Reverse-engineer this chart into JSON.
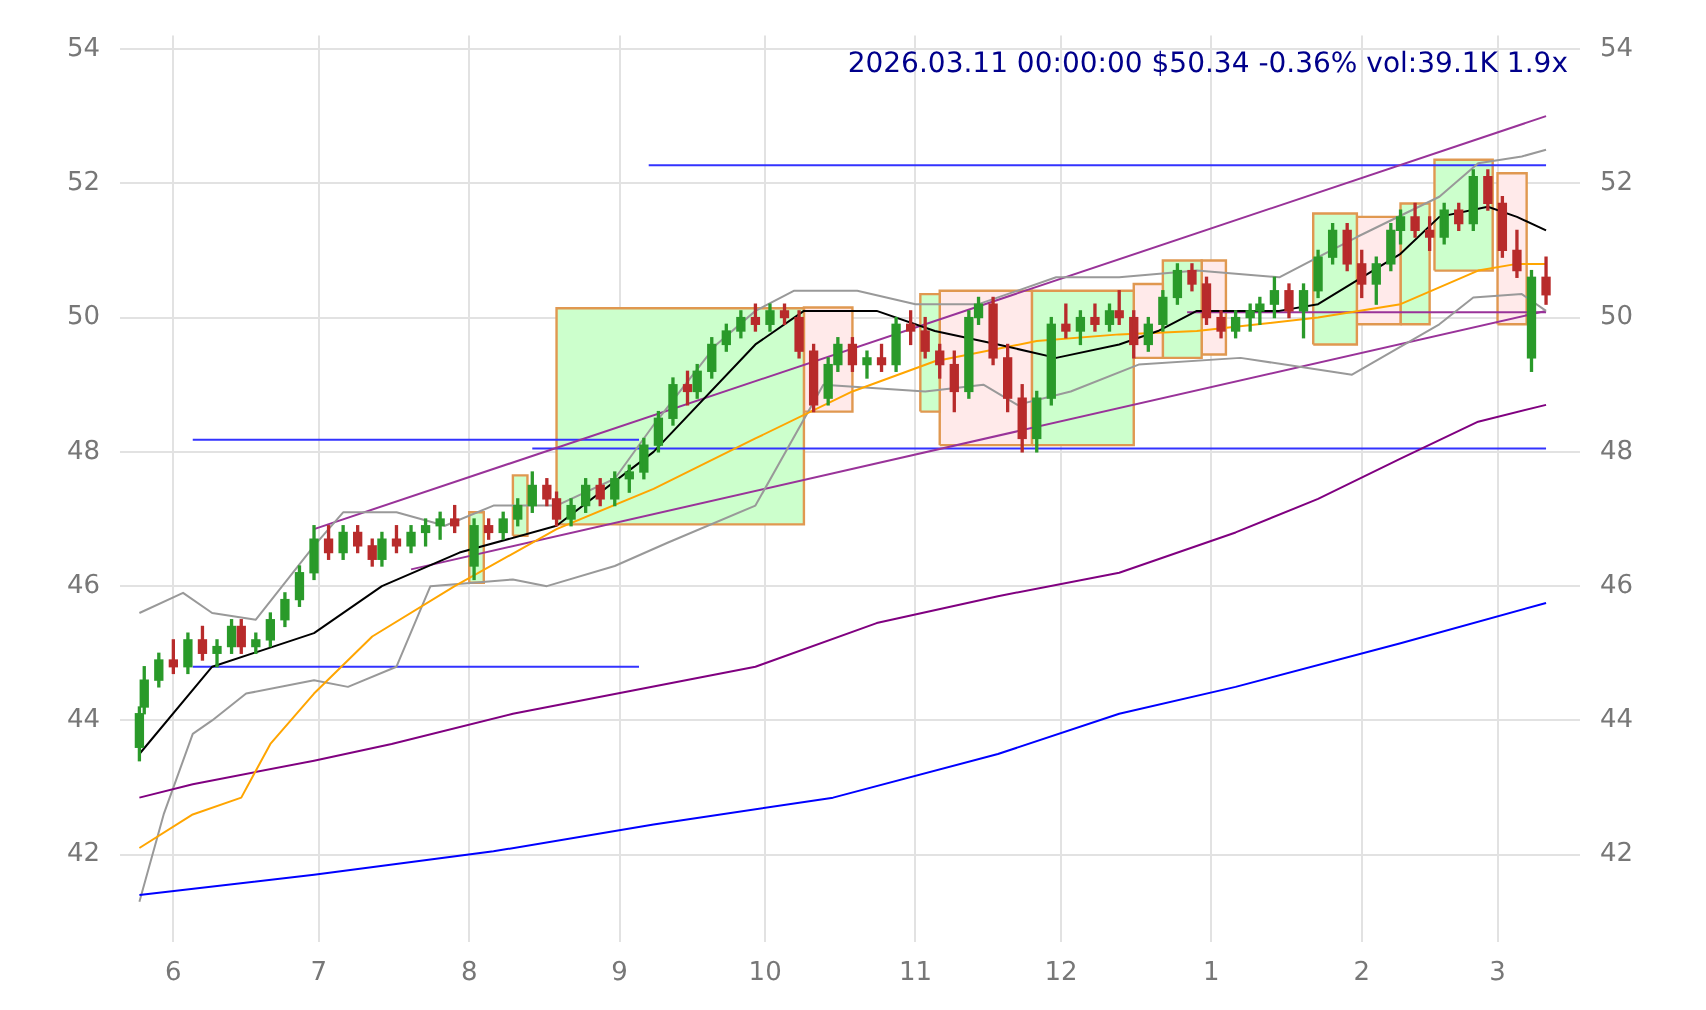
{
  "chart_data": {
    "type": "candlestick",
    "title": "2026.03.11 00:00:00 $50.34 -0.36% vol:39.1K 1.9x",
    "x": [
      "2025-05-25",
      "2025-05-26",
      "2025-05-29",
      "2025-06-01",
      "2025-06-04",
      "2025-06-07",
      "2025-06-10",
      "2025-06-13",
      "2025-06-15",
      "2025-06-18",
      "2025-06-21",
      "2025-06-24",
      "2025-06-27",
      "2025-06-30",
      "2025-07-03",
      "2025-07-06",
      "2025-07-09",
      "2025-07-12",
      "2025-07-14",
      "2025-07-17",
      "2025-07-20",
      "2025-07-23",
      "2025-07-26",
      "2025-07-29",
      "2025-08-02",
      "2025-08-05",
      "2025-08-08",
      "2025-08-11",
      "2025-08-14",
      "2025-08-17",
      "2025-08-19",
      "2025-08-22",
      "2025-08-25",
      "2025-08-28",
      "2025-08-31",
      "2025-09-03",
      "2025-09-06",
      "2025-09-09",
      "2025-09-12",
      "2025-09-15",
      "2025-09-17",
      "2025-09-20",
      "2025-09-23",
      "2025-09-26",
      "2025-09-29",
      "2025-10-02",
      "2025-10-05",
      "2025-10-08",
      "2025-10-11",
      "2025-10-14",
      "2025-10-16",
      "2025-10-19",
      "2025-10-22",
      "2025-10-25",
      "2025-10-28",
      "2025-10-31",
      "2025-11-03",
      "2025-11-06",
      "2025-11-09",
      "2025-11-12",
      "2025-11-14",
      "2025-11-17",
      "2025-11-20",
      "2025-11-23",
      "2025-11-26",
      "2025-11-29",
      "2025-12-02",
      "2025-12-05",
      "2025-12-08",
      "2025-12-11",
      "2025-12-13",
      "2025-12-16",
      "2025-12-19",
      "2025-12-22",
      "2025-12-25",
      "2025-12-28",
      "2025-12-31",
      "2026-01-03",
      "2026-01-06",
      "2026-01-09",
      "2026-01-11",
      "2026-01-14",
      "2026-01-17",
      "2026-01-20",
      "2026-01-23",
      "2026-01-26",
      "2026-01-29",
      "2026-02-01",
      "2026-02-04",
      "2026-02-07",
      "2026-02-09",
      "2026-02-12",
      "2026-02-15",
      "2026-02-18",
      "2026-02-21",
      "2026-02-24",
      "2026-02-27",
      "2026-03-02",
      "2026-03-05",
      "2026-03-08",
      "2026-03-11"
    ],
    "ohlc": [
      [
        43.6,
        44.2,
        43.4,
        44.1
      ],
      [
        44.2,
        44.8,
        44.1,
        44.6
      ],
      [
        44.6,
        45.0,
        44.5,
        44.9
      ],
      [
        44.9,
        45.2,
        44.7,
        44.8
      ],
      [
        44.8,
        45.3,
        44.7,
        45.2
      ],
      [
        45.2,
        45.4,
        44.9,
        45.0
      ],
      [
        45.0,
        45.2,
        44.8,
        45.1
      ],
      [
        45.1,
        45.5,
        45.0,
        45.4
      ],
      [
        45.4,
        45.5,
        45.0,
        45.1
      ],
      [
        45.1,
        45.3,
        45.0,
        45.2
      ],
      [
        45.2,
        45.6,
        45.1,
        45.5
      ],
      [
        45.5,
        45.9,
        45.4,
        45.8
      ],
      [
        45.8,
        46.3,
        45.7,
        46.2
      ],
      [
        46.2,
        46.9,
        46.1,
        46.7
      ],
      [
        46.7,
        46.9,
        46.4,
        46.5
      ],
      [
        46.5,
        46.9,
        46.4,
        46.8
      ],
      [
        46.8,
        46.9,
        46.5,
        46.6
      ],
      [
        46.6,
        46.7,
        46.3,
        46.4
      ],
      [
        46.4,
        46.8,
        46.3,
        46.7
      ],
      [
        46.7,
        46.9,
        46.5,
        46.6
      ],
      [
        46.6,
        46.9,
        46.5,
        46.8
      ],
      [
        46.8,
        47.0,
        46.6,
        46.9
      ],
      [
        46.9,
        47.1,
        46.7,
        47.0
      ],
      [
        47.0,
        47.2,
        46.8,
        46.9
      ],
      [
        46.3,
        47.0,
        46.1,
        46.9
      ],
      [
        46.9,
        47.0,
        46.7,
        46.8
      ],
      [
        46.8,
        47.1,
        46.7,
        47.0
      ],
      [
        47.0,
        47.3,
        46.9,
        47.2
      ],
      [
        47.2,
        47.7,
        47.1,
        47.5
      ],
      [
        47.5,
        47.6,
        47.2,
        47.3
      ],
      [
        47.3,
        47.4,
        46.9,
        47.0
      ],
      [
        47.0,
        47.3,
        46.9,
        47.2
      ],
      [
        47.2,
        47.6,
        47.1,
        47.5
      ],
      [
        47.5,
        47.6,
        47.2,
        47.3
      ],
      [
        47.3,
        47.7,
        47.2,
        47.6
      ],
      [
        47.6,
        47.8,
        47.4,
        47.7
      ],
      [
        47.7,
        48.2,
        47.6,
        48.1
      ],
      [
        48.1,
        48.6,
        48.0,
        48.5
      ],
      [
        48.5,
        49.1,
        48.4,
        49.0
      ],
      [
        49.0,
        49.2,
        48.7,
        48.9
      ],
      [
        48.9,
        49.3,
        48.8,
        49.2
      ],
      [
        49.2,
        49.7,
        49.1,
        49.6
      ],
      [
        49.6,
        49.9,
        49.5,
        49.8
      ],
      [
        49.8,
        50.1,
        49.7,
        50.0
      ],
      [
        50.0,
        50.2,
        49.8,
        49.9
      ],
      [
        49.9,
        50.2,
        49.8,
        50.1
      ],
      [
        50.1,
        50.2,
        49.9,
        50.0
      ],
      [
        50.0,
        50.1,
        49.4,
        49.5
      ],
      [
        49.5,
        49.6,
        48.6,
        48.7
      ],
      [
        48.8,
        49.4,
        48.7,
        49.3
      ],
      [
        49.3,
        49.7,
        49.2,
        49.6
      ],
      [
        49.6,
        49.7,
        49.2,
        49.3
      ],
      [
        49.3,
        49.5,
        49.1,
        49.4
      ],
      [
        49.4,
        49.6,
        49.2,
        49.3
      ],
      [
        49.3,
        50.0,
        49.2,
        49.9
      ],
      [
        49.9,
        50.1,
        49.6,
        49.8
      ],
      [
        49.8,
        50.0,
        49.4,
        49.5
      ],
      [
        49.5,
        49.6,
        49.1,
        49.3
      ],
      [
        49.3,
        49.5,
        48.6,
        48.9
      ],
      [
        48.9,
        50.1,
        48.8,
        50.0
      ],
      [
        50.0,
        50.3,
        49.9,
        50.2
      ],
      [
        50.2,
        50.3,
        49.3,
        49.4
      ],
      [
        49.4,
        49.6,
        48.6,
        48.8
      ],
      [
        48.8,
        49.0,
        48.0,
        48.2
      ],
      [
        48.2,
        48.9,
        48.0,
        48.8
      ],
      [
        48.8,
        50.0,
        48.7,
        49.9
      ],
      [
        49.9,
        50.2,
        49.7,
        49.8
      ],
      [
        49.8,
        50.1,
        49.6,
        50.0
      ],
      [
        50.0,
        50.2,
        49.8,
        49.9
      ],
      [
        49.9,
        50.2,
        49.8,
        50.1
      ],
      [
        50.1,
        50.4,
        49.9,
        50.0
      ],
      [
        50.0,
        50.1,
        49.4,
        49.6
      ],
      [
        49.6,
        50.0,
        49.5,
        49.9
      ],
      [
        49.9,
        50.4,
        49.8,
        50.3
      ],
      [
        50.3,
        50.8,
        50.2,
        50.7
      ],
      [
        50.7,
        50.8,
        50.4,
        50.5
      ],
      [
        50.5,
        50.6,
        49.9,
        50.0
      ],
      [
        50.0,
        50.1,
        49.7,
        49.8
      ],
      [
        49.8,
        50.1,
        49.7,
        50.0
      ],
      [
        50.0,
        50.2,
        49.8,
        50.1
      ],
      [
        50.1,
        50.3,
        49.9,
        50.2
      ],
      [
        50.2,
        50.6,
        50.0,
        50.4
      ],
      [
        50.4,
        50.5,
        50.0,
        50.1
      ],
      [
        50.1,
        50.5,
        49.7,
        50.4
      ],
      [
        50.4,
        51.0,
        50.3,
        50.9
      ],
      [
        50.9,
        51.4,
        50.8,
        51.3
      ],
      [
        51.3,
        51.4,
        50.7,
        50.8
      ],
      [
        50.8,
        51.0,
        50.3,
        50.5
      ],
      [
        50.5,
        50.9,
        50.2,
        50.8
      ],
      [
        50.8,
        51.4,
        50.7,
        51.3
      ],
      [
        51.3,
        51.6,
        51.1,
        51.5
      ],
      [
        51.5,
        51.7,
        51.2,
        51.3
      ],
      [
        51.3,
        51.5,
        51.0,
        51.2
      ],
      [
        51.2,
        51.7,
        51.1,
        51.6
      ],
      [
        51.6,
        51.7,
        51.3,
        51.4
      ],
      [
        51.4,
        52.2,
        51.3,
        52.1
      ],
      [
        52.1,
        52.2,
        51.6,
        51.7
      ],
      [
        51.7,
        51.8,
        50.9,
        51.0
      ],
      [
        51.0,
        51.3,
        50.6,
        50.7
      ],
      [
        49.4,
        50.7,
        49.2,
        50.6
      ],
      [
        50.6,
        50.9,
        50.2,
        50.34
      ]
    ],
    "series": [
      {
        "type": "area",
        "color": "#ccffcc",
        "x": [
          "2025-08-19",
          "2025-08-19",
          "2025-10-09",
          "2025-10-09",
          "2025-08-19"
        ],
        "values": [
          46.92,
          50.14,
          50.14,
          46.92,
          46.92
        ]
      },
      {
        "type": "area",
        "color": "#ffeaea",
        "x": [
          "2025-10-09",
          "2025-10-09",
          "2025-10-19",
          "2025-10-19",
          "2025-10-09"
        ],
        "values": [
          48.6,
          50.15,
          50.15,
          48.6,
          48.6
        ]
      },
      {
        "type": "area",
        "color": "#ccffcc",
        "x": [
          "2025-08-01",
          "2025-08-01",
          "2025-08-04",
          "2025-08-04",
          "2025-08-01"
        ],
        "values": [
          46.05,
          47.1,
          47.1,
          46.05,
          46.05
        ]
      },
      {
        "type": "area",
        "color": "#ccffcc",
        "x": [
          "2025-08-10",
          "2025-08-10",
          "2025-08-13",
          "2025-08-13",
          "2025-08-10"
        ],
        "values": [
          46.75,
          47.65,
          47.65,
          46.75,
          46.75
        ]
      },
      {
        "type": "area",
        "color": "#ccffcc",
        "x": [
          "2025-11-02",
          "2025-11-02",
          "2025-11-06",
          "2025-11-06",
          "2025-11-02"
        ],
        "values": [
          48.6,
          50.35,
          50.35,
          48.6,
          48.6
        ]
      },
      {
        "type": "area",
        "color": "#ffeaea",
        "x": [
          "2025-11-06",
          "2025-11-06",
          "2025-11-25",
          "2025-11-25",
          "2025-11-06"
        ],
        "values": [
          48.1,
          50.4,
          50.4,
          48.1,
          48.1
        ]
      },
      {
        "type": "area",
        "color": "#ccffcc",
        "x": [
          "2025-11-25",
          "2025-11-25",
          "2025-12-16",
          "2025-12-16",
          "2025-11-25"
        ],
        "values": [
          48.1,
          50.4,
          50.4,
          48.1,
          48.1
        ]
      },
      {
        "type": "area",
        "color": "#ffeaea",
        "x": [
          "2025-12-16",
          "2025-12-16",
          "2025-12-22",
          "2025-12-22",
          "2025-12-16"
        ],
        "values": [
          49.4,
          50.5,
          50.5,
          49.4,
          49.4
        ]
      },
      {
        "type": "area",
        "color": "#ccffcc",
        "x": [
          "2025-12-22",
          "2025-12-22",
          "2025-12-30",
          "2025-12-30",
          "2025-12-22"
        ],
        "values": [
          49.4,
          50.85,
          50.85,
          49.4,
          49.4
        ]
      },
      {
        "type": "area",
        "color": "#ffeaea",
        "x": [
          "2025-12-30",
          "2025-12-30",
          "2026-01-04",
          "2026-01-04",
          "2025-12-30"
        ],
        "values": [
          49.45,
          50.85,
          50.85,
          49.45,
          49.45
        ]
      },
      {
        "type": "area",
        "color": "#ccffcc",
        "x": [
          "2026-01-22",
          "2026-01-22",
          "2026-01-31",
          "2026-01-31",
          "2026-01-22"
        ],
        "values": [
          49.6,
          51.55,
          51.55,
          49.6,
          49.6
        ]
      },
      {
        "type": "area",
        "color": "#ffeaea",
        "x": [
          "2026-01-31",
          "2026-01-31",
          "2026-02-09",
          "2026-02-09",
          "2026-01-31"
        ],
        "values": [
          49.9,
          51.5,
          51.5,
          49.9,
          49.9
        ]
      },
      {
        "type": "area",
        "color": "#ccffcc",
        "x": [
          "2026-02-09",
          "2026-02-09",
          "2026-02-15",
          "2026-02-15",
          "2026-02-09"
        ],
        "values": [
          49.9,
          51.7,
          51.7,
          49.9,
          49.9
        ]
      },
      {
        "type": "area",
        "color": "#ccffcc",
        "x": [
          "2026-02-16",
          "2026-02-16",
          "2026-02-28",
          "2026-02-28",
          "2026-02-16"
        ],
        "values": [
          50.7,
          52.35,
          52.35,
          50.7,
          50.7
        ]
      },
      {
        "type": "area",
        "color": "#ffeaea",
        "x": [
          "2026-03-01",
          "2026-03-01",
          "2026-03-07",
          "2026-03-07",
          "2026-03-01"
        ],
        "values": [
          49.9,
          52.15,
          52.15,
          49.9,
          49.9
        ]
      },
      {
        "type": "line",
        "color": "#000000",
        "x": [
          "2025-05-25",
          "2025-06-09",
          "2025-06-30",
          "2025-07-14",
          "2025-07-30",
          "2025-08-19",
          "2025-09-08",
          "2025-09-29",
          "2025-10-09",
          "2025-10-24",
          "2025-11-05",
          "2025-11-18",
          "2025-11-30",
          "2025-12-13",
          "2025-12-21",
          "2025-12-29",
          "2026-01-15",
          "2026-01-23",
          "2026-02-09",
          "2026-02-17",
          "2026-02-27",
          "2026-03-05",
          "2026-03-11"
        ],
        "values": [
          43.5,
          44.8,
          45.3,
          46.0,
          46.5,
          46.9,
          48.0,
          49.6,
          50.1,
          50.1,
          49.8,
          49.6,
          49.4,
          49.6,
          49.8,
          50.1,
          50.1,
          50.2,
          50.95,
          51.5,
          51.65,
          51.5,
          51.3
        ]
      },
      {
        "type": "line",
        "color": "#ffa500",
        "x": [
          "2025-05-25",
          "2025-06-05",
          "2025-06-15",
          "2025-06-21",
          "2025-06-30",
          "2025-07-12",
          "2025-07-29",
          "2025-08-19",
          "2025-09-08",
          "2025-09-29",
          "2025-10-19",
          "2025-11-05",
          "2025-11-26",
          "2025-12-13",
          "2025-12-29",
          "2026-01-23",
          "2026-02-09",
          "2026-02-25",
          "2026-03-05",
          "2026-03-11"
        ],
        "values": [
          42.1,
          42.6,
          42.85,
          43.65,
          44.4,
          45.25,
          46.0,
          46.85,
          47.45,
          48.2,
          48.9,
          49.35,
          49.65,
          49.75,
          49.8,
          50.0,
          50.2,
          50.7,
          50.8,
          50.8
        ]
      },
      {
        "type": "line",
        "color": "#800080",
        "x": [
          "2025-05-25",
          "2025-06-05",
          "2025-06-30",
          "2025-07-16",
          "2025-08-10",
          "2025-09-04",
          "2025-09-29",
          "2025-10-24",
          "2025-11-18",
          "2025-12-13",
          "2026-01-06",
          "2026-01-23",
          "2026-02-09",
          "2026-02-25",
          "2026-03-11"
        ],
        "values": [
          42.85,
          43.05,
          43.4,
          43.65,
          44.1,
          44.45,
          44.8,
          45.45,
          45.85,
          46.2,
          46.8,
          47.3,
          47.9,
          48.45,
          48.7
        ]
      },
      {
        "type": "line",
        "color": "#0000ff",
        "x": [
          "2025-05-25",
          "2025-06-30",
          "2025-08-06",
          "2025-09-08",
          "2025-10-15",
          "2025-11-18",
          "2025-12-13",
          "2026-01-06",
          "2026-02-09",
          "2026-03-11"
        ],
        "values": [
          41.4,
          41.7,
          42.05,
          42.45,
          42.85,
          43.5,
          44.1,
          44.5,
          45.15,
          45.75
        ]
      },
      {
        "type": "line",
        "color": "#999999",
        "x": [
          "2025-05-25",
          "2025-06-03",
          "2025-06-09",
          "2025-06-18",
          "2025-06-30",
          "2025-07-06",
          "2025-07-17",
          "2025-07-27",
          "2025-08-06",
          "2025-08-19",
          "2025-08-31",
          "2025-09-08",
          "2025-09-21",
          "2025-09-29",
          "2025-10-07",
          "2025-10-20",
          "2025-11-01",
          "2025-11-14",
          "2025-11-30",
          "2025-12-13",
          "2025-12-29",
          "2026-01-15",
          "2026-01-31",
          "2026-02-17",
          "2026-02-25",
          "2026-03-06",
          "2026-03-11"
        ],
        "values": [
          45.6,
          45.9,
          45.6,
          45.5,
          46.6,
          47.1,
          47.1,
          46.9,
          47.2,
          47.2,
          47.6,
          48.4,
          49.6,
          50.1,
          50.4,
          50.4,
          50.2,
          50.2,
          50.6,
          50.6,
          50.7,
          50.6,
          51.2,
          51.8,
          52.3,
          52.4,
          52.5
        ]
      },
      {
        "type": "line",
        "color": "#999999",
        "x": [
          "2025-05-25",
          "2025-05-30",
          "2025-06-05",
          "2025-06-09",
          "2025-06-16",
          "2025-06-30",
          "2025-07-07",
          "2025-07-17",
          "2025-07-24",
          "2025-08-10",
          "2025-08-17",
          "2025-08-31",
          "2025-09-11",
          "2025-09-29",
          "2025-10-13",
          "2025-11-03",
          "2025-11-15",
          "2025-11-22",
          "2025-12-03",
          "2025-12-17",
          "2026-01-07",
          "2026-01-30",
          "2026-02-17",
          "2026-02-24",
          "2026-03-06",
          "2026-03-11"
        ],
        "values": [
          41.3,
          42.6,
          43.8,
          44.0,
          44.4,
          44.6,
          44.5,
          44.8,
          46.0,
          46.1,
          46.0,
          46.3,
          46.65,
          47.2,
          49.0,
          48.9,
          49.0,
          48.7,
          48.9,
          49.3,
          49.4,
          49.15,
          49.9,
          50.3,
          50.35,
          50.1
        ]
      },
      {
        "type": "line",
        "color": "#993399",
        "x": [
          "2025-06-30",
          "2026-03-11"
        ],
        "values": [
          46.85,
          53.0
        ]
      },
      {
        "type": "line",
        "color": "#993399",
        "x": [
          "2025-07-20",
          "2026-03-11"
        ],
        "values": [
          46.25,
          50.1
        ]
      },
      {
        "type": "line",
        "color": "#993399",
        "x": [
          "2025-12-27",
          "2026-03-11"
        ],
        "values": [
          50.08,
          50.08
        ]
      },
      {
        "type": "line",
        "color": "#3333ff",
        "x": [
          "2025-06-05",
          "2025-09-05"
        ],
        "values": [
          44.8,
          44.8
        ]
      },
      {
        "type": "line",
        "color": "#3333ff",
        "x": [
          "2025-06-05",
          "2025-09-05"
        ],
        "values": [
          48.18,
          48.18
        ]
      },
      {
        "type": "line",
        "color": "#3333ff",
        "x": [
          "2025-08-14",
          "2026-03-11"
        ],
        "values": [
          48.05,
          48.05
        ]
      },
      {
        "type": "line",
        "color": "#3333ff",
        "x": [
          "2025-09-07",
          "2026-03-11"
        ],
        "values": [
          52.27,
          52.27
        ]
      }
    ],
    "xlim": [
      "2025-05-21",
      "2026-03-18"
    ],
    "xticks": [
      {
        "value": "2025-06-01",
        "label": "6"
      },
      {
        "value": "2025-07-01",
        "label": "7"
      },
      {
        "value": "2025-08-01",
        "label": "8"
      },
      {
        "value": "2025-09-01",
        "label": "9"
      },
      {
        "value": "2025-10-01",
        "label": "10"
      },
      {
        "value": "2025-11-01",
        "label": "11"
      },
      {
        "value": "2025-12-01",
        "label": "12"
      },
      {
        "value": "2026-01-01",
        "label": "1"
      },
      {
        "value": "2026-02-01",
        "label": "2"
      },
      {
        "value": "2026-03-01",
        "label": "3"
      }
    ],
    "ylim": [
      40.7,
      54.2
    ],
    "yticks": [
      42,
      44,
      46,
      48,
      50,
      52,
      54
    ],
    "y2lim": [
      40.7,
      54.2
    ],
    "y2ticks": [
      42,
      44,
      46,
      48,
      50,
      52,
      54
    ],
    "grid": true
  }
}
